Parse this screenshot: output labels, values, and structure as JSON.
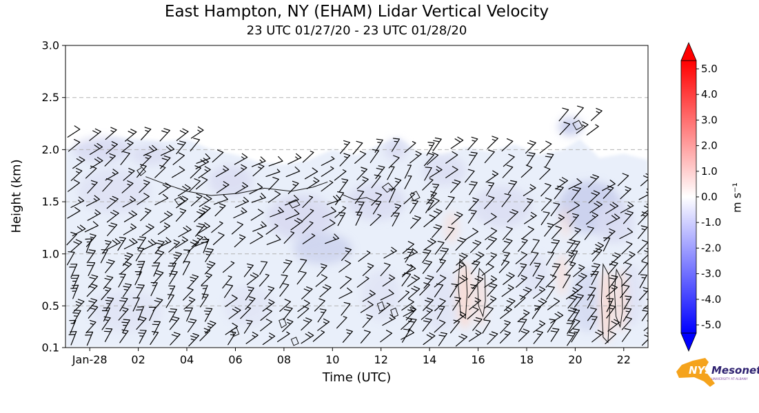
{
  "logo": {
    "line1": "NYS",
    "line2": "Mesonet",
    "tagline": "UNIVERSITY AT ALBANY",
    "orange": "#f5a31c",
    "navy": "#2e2170"
  },
  "chart_data": {
    "type": "heatmap",
    "title": "East Hampton, NY (EHAM) Lidar Vertical Velocity",
    "subtitle": "23 UTC 01/27/20 - 23 UTC 01/28/20",
    "xlabel": "Time (UTC)",
    "ylabel": "Height (km)",
    "x_ticks": [
      "Jan-28",
      "02",
      "04",
      "06",
      "08",
      "10",
      "12",
      "14",
      "16",
      "18",
      "20",
      "22"
    ],
    "x_tick_hours": [
      0,
      2,
      4,
      6,
      8,
      10,
      12,
      14,
      16,
      18,
      20,
      22
    ],
    "x_range_hours": [
      -1,
      23
    ],
    "y_ticks": [
      "3.0",
      "2.5",
      "2.0",
      "1.5",
      "1.0",
      "0.5",
      "0.1"
    ],
    "ylim": [
      0.1,
      3.0
    ],
    "gridlines": [
      0.5,
      1.0,
      1.5,
      2.0,
      2.5
    ],
    "colorbar": {
      "label": "m s⁻¹",
      "ticks": [
        "5.0",
        "4.0",
        "3.0",
        "2.0",
        "1.0",
        "0.0",
        "-1.0",
        "-2.0",
        "-3.0",
        "-4.0",
        "-5.0"
      ],
      "min": -5.0,
      "max": 5.0,
      "colors": [
        "#0000ff",
        "#ffffff",
        "#ff0000"
      ]
    },
    "notes": "Vertical velocity mostly weakly negative (pale blue, 0 to -1 m/s) below ~2.1 km all day; scattered weak updraft streaks (pale red, ~+0.5 m/s) near 15-16, 19.5 and 21-22 UTC below 1.3 km; wind barbs 10-25 kt in two layers (0.1-1.0 km and 1.0-2.1 km).",
    "field": {
      "base_color": "#e9effa",
      "palette": {
        "lav": "#d9dbf2",
        "lav2": "#c7cdec",
        "pink": "#f8dcd5"
      },
      "top_boundary": [
        [
          -1,
          2.0
        ],
        [
          0,
          2.05
        ],
        [
          1,
          2.12
        ],
        [
          2,
          2.1
        ],
        [
          3,
          2.08
        ],
        [
          4,
          2.1
        ],
        [
          5,
          2.0
        ],
        [
          6,
          1.95
        ],
        [
          7,
          1.88
        ],
        [
          8,
          1.86
        ],
        [
          9,
          1.9
        ],
        [
          10,
          2.0
        ],
        [
          11,
          1.95
        ],
        [
          12,
          2.05
        ],
        [
          12.7,
          2.12
        ],
        [
          13.5,
          1.98
        ],
        [
          14.5,
          1.95
        ],
        [
          15.5,
          2.02
        ],
        [
          16.5,
          1.98
        ],
        [
          17.5,
          2.05
        ],
        [
          18.5,
          1.95
        ],
        [
          19.5,
          2.0
        ],
        [
          20.2,
          2.1
        ],
        [
          21,
          1.92
        ],
        [
          22,
          1.96
        ],
        [
          23,
          1.9
        ]
      ],
      "patches": [
        [
          0.5,
          2.0,
          1.2,
          0.12,
          "lav",
          0.9
        ],
        [
          2.5,
          1.95,
          0.8,
          0.1,
          "lav",
          0.8
        ],
        [
          1.0,
          1.6,
          1.5,
          0.22,
          "lav",
          0.55
        ],
        [
          5.8,
          1.7,
          0.9,
          0.15,
          "lav",
          0.8
        ],
        [
          8.7,
          1.35,
          1.4,
          0.22,
          "lav",
          0.9
        ],
        [
          9.6,
          1.05,
          1.2,
          0.15,
          "lav2",
          0.7
        ],
        [
          11.8,
          1.5,
          1.2,
          0.18,
          "lav",
          0.8
        ],
        [
          12.6,
          2.0,
          0.5,
          0.1,
          "lav",
          0.8
        ],
        [
          14.6,
          1.8,
          0.9,
          0.15,
          "lav",
          0.7
        ],
        [
          17.0,
          1.45,
          1.2,
          0.2,
          "lav",
          0.7
        ],
        [
          19.8,
          2.22,
          0.5,
          0.09,
          "lav2",
          0.9
        ],
        [
          20.6,
          1.45,
          1.3,
          0.25,
          "lav2",
          0.85
        ],
        [
          21.6,
          1.3,
          0.8,
          0.2,
          "lav",
          0.8
        ],
        [
          1.5,
          0.45,
          1.5,
          0.2,
          "lav",
          0.45
        ],
        [
          6.5,
          0.5,
          1.0,
          0.2,
          "lav",
          0.4
        ],
        [
          12.0,
          0.6,
          0.8,
          0.25,
          "lav",
          0.45
        ],
        [
          14.5,
          0.55,
          0.8,
          0.3,
          "lav",
          0.45
        ],
        [
          18.3,
          0.8,
          0.6,
          0.2,
          "lav",
          0.5
        ],
        [
          20.5,
          0.55,
          0.7,
          0.3,
          "lav2",
          0.5
        ],
        [
          22.3,
          0.6,
          0.5,
          0.3,
          "lav",
          0.55
        ],
        [
          15.45,
          0.6,
          0.35,
          0.32,
          "pink",
          0.9
        ],
        [
          16.1,
          0.55,
          0.25,
          0.25,
          "pink",
          0.7
        ],
        [
          19.45,
          0.8,
          0.2,
          0.2,
          "pink",
          0.8
        ],
        [
          21.3,
          0.5,
          0.3,
          0.35,
          "pink",
          0.9
        ],
        [
          21.9,
          0.55,
          0.25,
          0.3,
          "pink",
          0.8
        ],
        [
          14.9,
          1.25,
          0.3,
          0.15,
          "pink",
          0.6
        ],
        [
          19.6,
          1.3,
          0.25,
          0.15,
          "pink",
          0.5
        ]
      ]
    },
    "contours": [
      {
        "closed": false,
        "pts": [
          [
            2.3,
            1.74
          ],
          [
            3.1,
            1.67
          ],
          [
            4.0,
            1.6
          ],
          [
            5.0,
            1.56
          ],
          [
            6.1,
            1.58
          ],
          [
            7.2,
            1.63
          ],
          [
            8.3,
            1.6
          ],
          [
            9.2,
            1.64
          ],
          [
            9.8,
            1.69
          ]
        ]
      },
      {
        "closed": true,
        "pts": [
          [
            1.95,
            1.8
          ],
          [
            2.15,
            1.83
          ],
          [
            2.3,
            1.79
          ],
          [
            2.1,
            1.75
          ]
        ]
      },
      {
        "closed": true,
        "pts": [
          [
            3.5,
            1.52
          ],
          [
            3.75,
            1.55
          ],
          [
            3.9,
            1.5
          ],
          [
            3.65,
            1.47
          ]
        ]
      },
      {
        "closed": true,
        "pts": [
          [
            8.2,
            1.49
          ],
          [
            8.5,
            1.52
          ],
          [
            8.65,
            1.47
          ],
          [
            8.35,
            1.44
          ]
        ]
      },
      {
        "closed": true,
        "pts": [
          [
            12.05,
            1.64
          ],
          [
            12.3,
            1.68
          ],
          [
            12.5,
            1.63
          ],
          [
            12.25,
            1.59
          ]
        ]
      },
      {
        "closed": true,
        "pts": [
          [
            13.2,
            1.57
          ],
          [
            13.45,
            1.6
          ],
          [
            13.6,
            1.54
          ],
          [
            13.35,
            1.51
          ]
        ]
      },
      {
        "closed": false,
        "pts": [
          [
            10.4,
            1.57
          ],
          [
            10.9,
            1.52
          ],
          [
            11.4,
            1.54
          ],
          [
            11.8,
            1.5
          ]
        ]
      },
      {
        "closed": true,
        "pts": [
          [
            15.25,
            0.95
          ],
          [
            15.5,
            0.88
          ],
          [
            15.55,
            0.62
          ],
          [
            15.48,
            0.38
          ],
          [
            15.28,
            0.42
          ],
          [
            15.18,
            0.7
          ]
        ]
      },
      {
        "closed": true,
        "pts": [
          [
            16.05,
            0.86
          ],
          [
            16.28,
            0.8
          ],
          [
            16.3,
            0.55
          ],
          [
            16.2,
            0.4
          ],
          [
            16.02,
            0.5
          ],
          [
            15.98,
            0.7
          ]
        ]
      },
      {
        "closed": true,
        "pts": [
          [
            21.15,
            0.9
          ],
          [
            21.38,
            0.8
          ],
          [
            21.42,
            0.45
          ],
          [
            21.35,
            0.15
          ],
          [
            21.15,
            0.2
          ],
          [
            21.08,
            0.55
          ]
        ]
      },
      {
        "closed": true,
        "pts": [
          [
            21.7,
            0.85
          ],
          [
            21.92,
            0.75
          ],
          [
            21.95,
            0.45
          ],
          [
            21.85,
            0.3
          ],
          [
            21.68,
            0.4
          ],
          [
            21.62,
            0.65
          ]
        ]
      },
      {
        "closed": true,
        "pts": [
          [
            7.8,
            0.36
          ],
          [
            8.0,
            0.38
          ],
          [
            8.1,
            0.32
          ],
          [
            7.9,
            0.29
          ]
        ]
      },
      {
        "closed": true,
        "pts": [
          [
            8.3,
            0.18
          ],
          [
            8.5,
            0.2
          ],
          [
            8.6,
            0.14
          ],
          [
            8.4,
            0.12
          ]
        ]
      },
      {
        "closed": true,
        "pts": [
          [
            5.85,
            0.27
          ],
          [
            6.05,
            0.29
          ],
          [
            6.15,
            0.23
          ],
          [
            5.95,
            0.21
          ]
        ]
      },
      {
        "closed": true,
        "pts": [
          [
            11.85,
            0.52
          ],
          [
            12.05,
            0.54
          ],
          [
            12.15,
            0.47
          ],
          [
            11.95,
            0.45
          ]
        ]
      },
      {
        "closed": true,
        "pts": [
          [
            12.4,
            0.46
          ],
          [
            12.6,
            0.48
          ],
          [
            12.7,
            0.41
          ],
          [
            12.5,
            0.39
          ]
        ]
      },
      {
        "closed": true,
        "pts": [
          [
            19.9,
            2.25
          ],
          [
            20.15,
            2.28
          ],
          [
            20.3,
            2.22
          ],
          [
            20.05,
            2.19
          ]
        ]
      }
    ],
    "barb_clusters": [
      {
        "t": [
          -0.8,
          4.3
        ],
        "dt": 0.72,
        "h": [
          1.06,
          2.1
        ],
        "dh": 0.13,
        "dir": 38,
        "spd": 18
      },
      {
        "t": [
          4.4,
          9.6
        ],
        "dt": 0.75,
        "h": [
          1.08,
          1.82
        ],
        "dh": 0.13,
        "dir": 33,
        "spd": 15
      },
      {
        "t": [
          10.2,
          13.9
        ],
        "dt": 0.72,
        "h": [
          1.25,
          1.95
        ],
        "dh": 0.12,
        "dir": 52,
        "spd": 14
      },
      {
        "t": [
          14.0,
          19.0
        ],
        "dt": 0.78,
        "h": [
          1.15,
          2.02
        ],
        "dh": 0.14,
        "dir": 45,
        "spd": 17
      },
      {
        "t": [
          19.1,
          22.7
        ],
        "dt": 0.7,
        "h": [
          1.15,
          1.62
        ],
        "dh": 0.12,
        "dir": 40,
        "spd": 18
      },
      {
        "t": [
          19.4,
          20.6
        ],
        "dt": 0.6,
        "h": [
          2.16,
          2.3
        ],
        "dh": 0.13,
        "dir": 45,
        "spd": 14
      },
      {
        "t": [
          -0.8,
          4.6
        ],
        "dt": 0.68,
        "h": [
          0.14,
          0.98
        ],
        "dh": 0.11,
        "dir": 55,
        "spd": 20
      },
      {
        "t": [
          5.6,
          9.4
        ],
        "dt": 0.75,
        "h": [
          0.14,
          0.8
        ],
        "dh": 0.11,
        "dir": 46,
        "spd": 15
      },
      {
        "t": [
          10.3,
          12.9
        ],
        "dt": 0.85,
        "h": [
          0.16,
          0.92
        ],
        "dh": 0.13,
        "dir": 40,
        "spd": 12
      },
      {
        "t": [
          13.0,
          19.3
        ],
        "dt": 0.66,
        "h": [
          0.14,
          0.97
        ],
        "dh": 0.11,
        "dir": 46,
        "spd": 18
      },
      {
        "t": [
          19.9,
          22.7
        ],
        "dt": 0.7,
        "h": [
          0.14,
          0.97
        ],
        "dh": 0.11,
        "dir": 50,
        "spd": 18
      }
    ]
  }
}
